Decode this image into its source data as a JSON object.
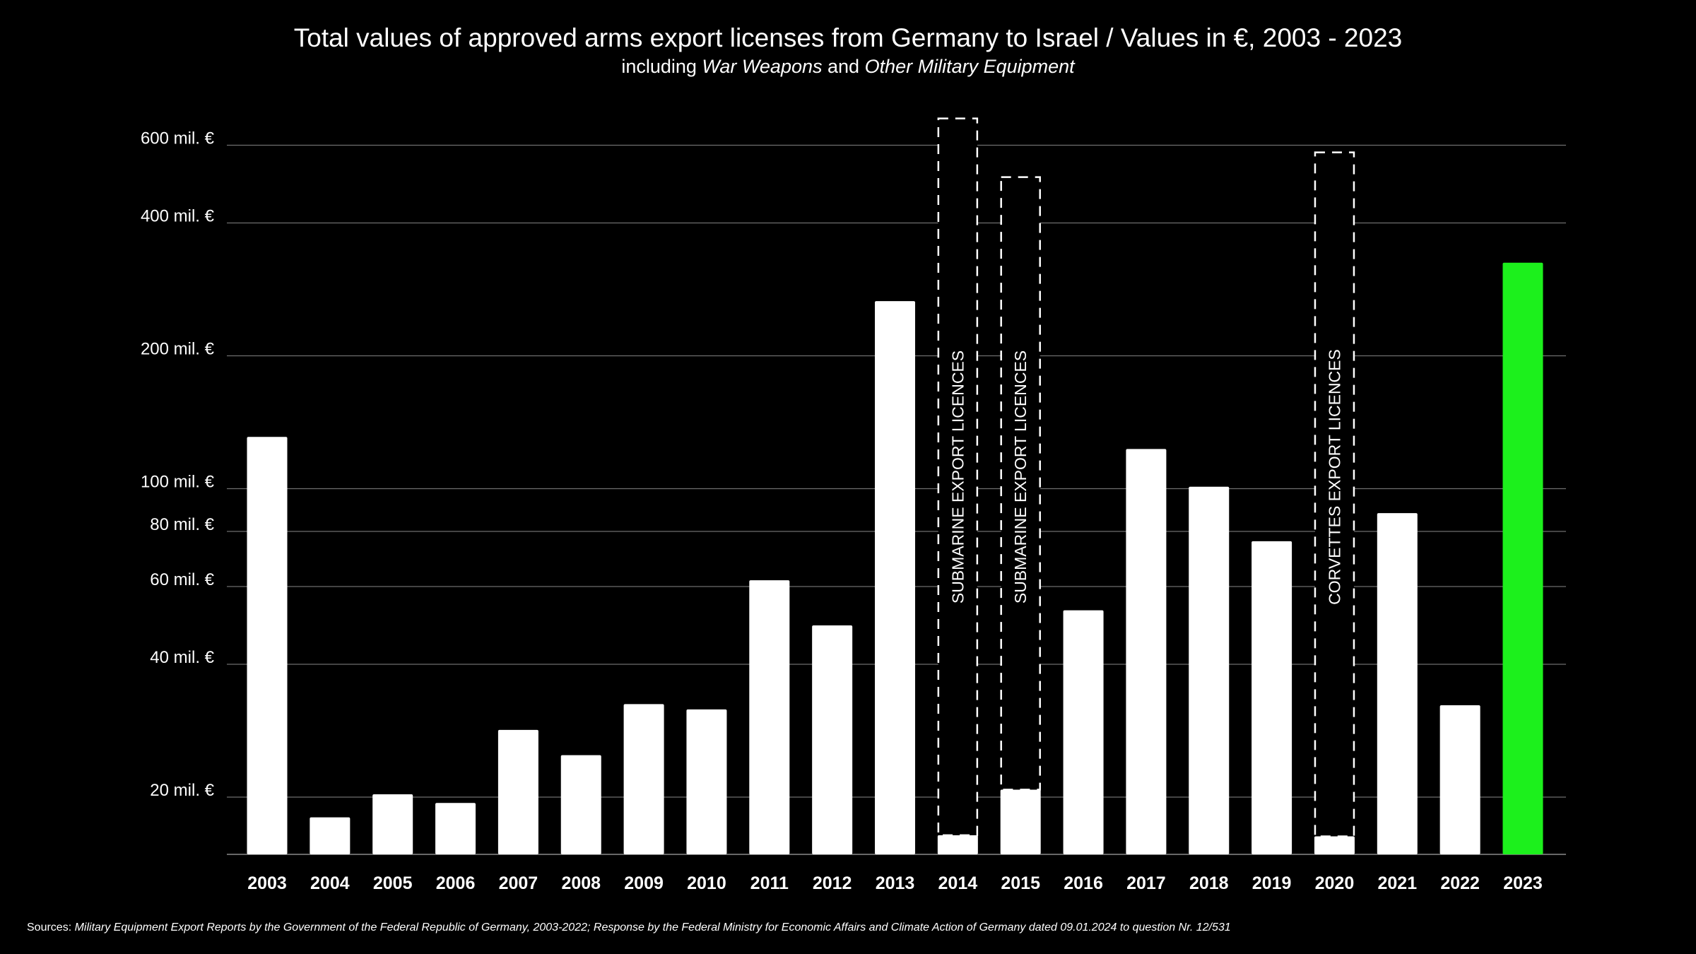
{
  "chart_data": {
    "type": "bar",
    "title": "Total values of approved arms export licenses from Germany to Israel / Values in €, 2003 - 2023",
    "subtitle": {
      "prefix": "including ",
      "em1": "War Weapons",
      "mid": " and ",
      "em2": "Other Military Equipment"
    },
    "xlabel": "",
    "ylabel": "",
    "yscale": "log",
    "ylim": [
      15,
      750
    ],
    "grid": true,
    "yticks": [
      {
        "value": 20,
        "label": "20 mil. €"
      },
      {
        "value": 40,
        "label": "40 mil. €"
      },
      {
        "value": 60,
        "label": "60 mil. €"
      },
      {
        "value": 80,
        "label": "80 mil. €"
      },
      {
        "value": 100,
        "label": "100 mil. €"
      },
      {
        "value": 200,
        "label": "200 mil. €"
      },
      {
        "value": 400,
        "label": "400 mil. €"
      },
      {
        "value": 600,
        "label": "600 mil. €"
      }
    ],
    "categories": [
      "2003",
      "2004",
      "2005",
      "2006",
      "2007",
      "2008",
      "2009",
      "2010",
      "2011",
      "2012",
      "2013",
      "2014",
      "2015",
      "2016",
      "2017",
      "2018",
      "2019",
      "2020",
      "2021",
      "2022",
      "2023"
    ],
    "values": [
      131,
      18,
      20.3,
      19.4,
      28.4,
      24.9,
      32.5,
      31.6,
      62,
      49,
      266,
      16.4,
      20.8,
      53,
      123,
      101,
      76,
      16.3,
      88,
      32.3,
      325
    ],
    "units": "mil. €",
    "colors": {
      "default": "#ffffff",
      "highlight": "#1cf01c",
      "background": "#000000",
      "grid": "#6e6e6e"
    },
    "highlight_category": "2023",
    "annotations": [
      {
        "category": "2014",
        "label": "SUBMARINE EXPORT LICENCES",
        "value": 690
      },
      {
        "category": "2015",
        "label": "SUBMARINE EXPORT LICENCES",
        "value": 508
      },
      {
        "category": "2020",
        "label": "CORVETTES EXPORT LICENCES",
        "value": 578
      }
    ]
  },
  "source": {
    "prefix": "Sources: ",
    "text": "Military Equipment Export Reports by the Government of the Federal Republic of Germany, 2003-2022; Response by the Federal Ministry for Economic Affairs and Climate Action of Germany dated 09.01.2024 to question Nr. 12/531"
  }
}
